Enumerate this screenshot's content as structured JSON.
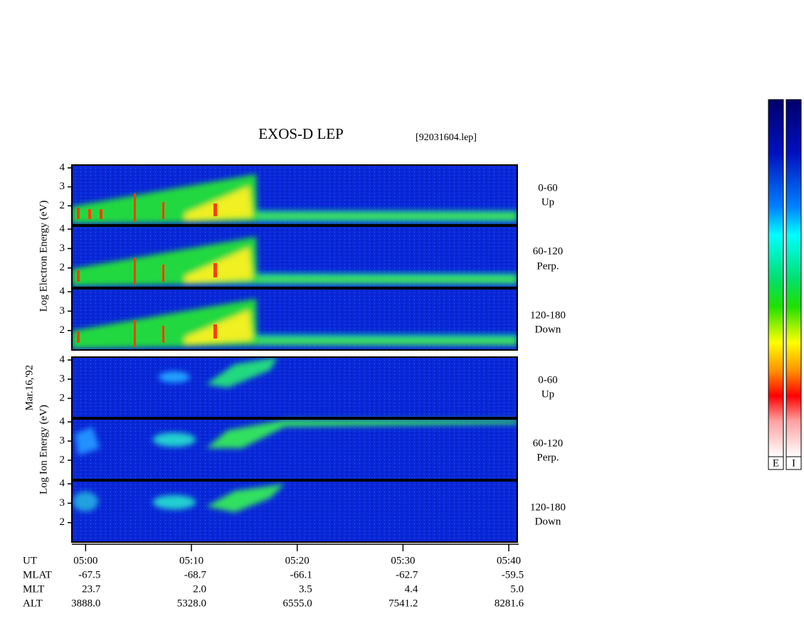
{
  "chart_data": {
    "type": "spectrogram",
    "title": "EXOS-D LEP",
    "file_label": "[92031604.lep]",
    "date_label": "Mar.16,'92",
    "groups": [
      {
        "ylabel": "Log  Electron  Energy (eV)",
        "panels": [
          {
            "angle": "0-60",
            "direction": "Up"
          },
          {
            "angle": "60-120",
            "direction": "Perp."
          },
          {
            "angle": "120-180",
            "direction": "Down"
          }
        ]
      },
      {
        "ylabel": "Log  Ion  Energy (eV)",
        "panels": [
          {
            "angle": "0-60",
            "direction": "Up"
          },
          {
            "angle": "60-120",
            "direction": "Perp."
          },
          {
            "angle": "120-180",
            "direction": "Down"
          }
        ]
      }
    ],
    "ylim": [
      1,
      4.15
    ],
    "yticks": [
      2,
      3,
      4
    ],
    "xlim": [
      298.7,
      340.8
    ],
    "xticks": [
      {
        "value": 300,
        "label": "05:00"
      },
      {
        "value": 310,
        "label": "05:10"
      },
      {
        "value": 320,
        "label": "05:20"
      },
      {
        "value": 330,
        "label": "05:30"
      },
      {
        "value": 340,
        "label": "05:40"
      }
    ],
    "orbit_table": {
      "row_labels": [
        "UT",
        "MLAT",
        "MLT",
        "ALT"
      ],
      "rows": [
        [
          "-67.5",
          "-68.7",
          "-66.1",
          "-62.7",
          "-59.5"
        ],
        [
          "23.7",
          "2.0",
          "3.5",
          "4.4",
          "5.0"
        ],
        [
          "3888.0",
          "5328.0",
          "6555.0",
          "7541.2",
          "8281.6"
        ]
      ]
    },
    "colorbars": [
      {
        "label": "E"
      },
      {
        "label": "I"
      }
    ]
  }
}
